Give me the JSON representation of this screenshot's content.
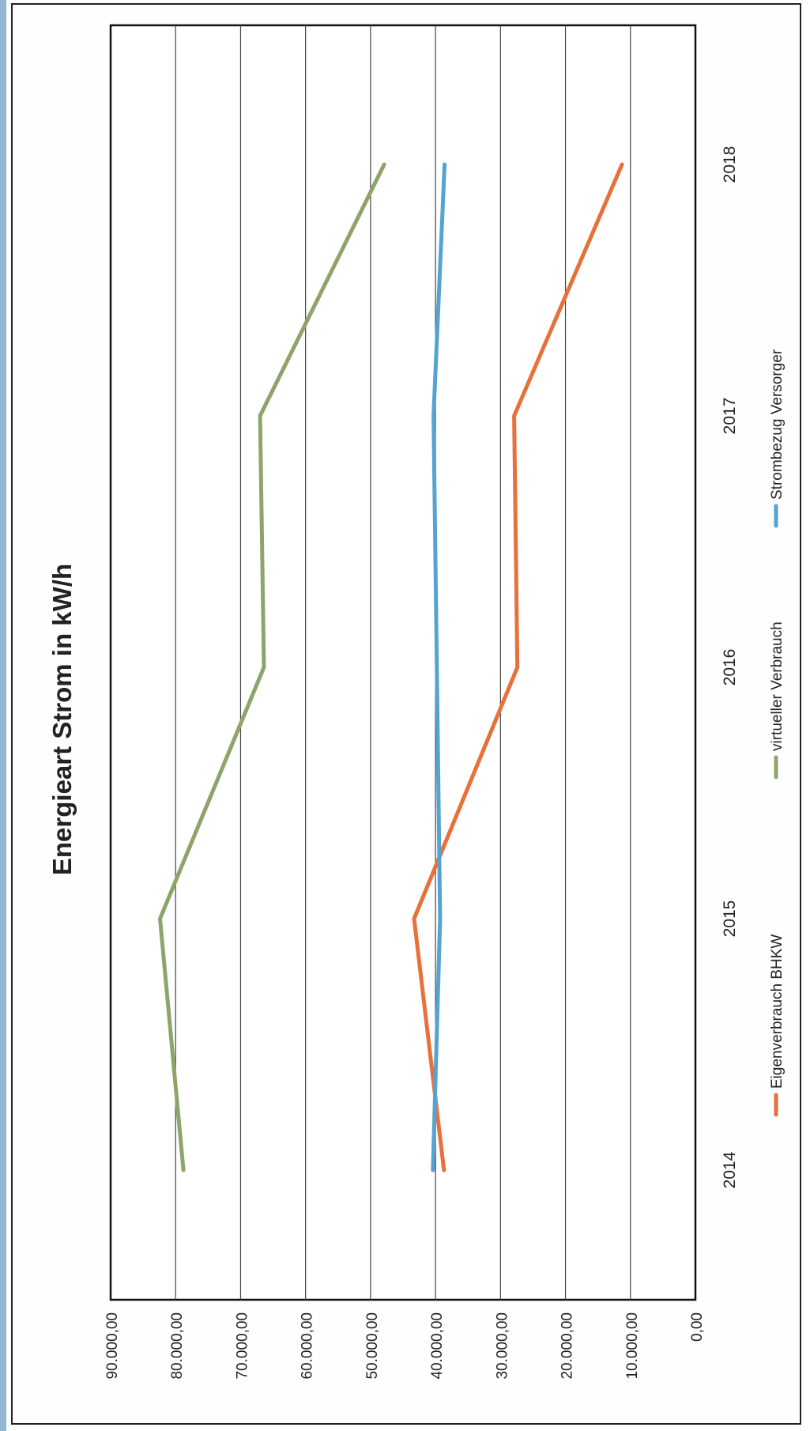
{
  "chart_data": {
    "type": "line",
    "title": "Energieart Strom in kW/h",
    "x": [
      "2014",
      "2015",
      "2016",
      "2017",
      "2018"
    ],
    "ylim": [
      0,
      90000
    ],
    "ytick_labels": [
      "0,00",
      "10.000,00",
      "20.000,00",
      "30.000,00",
      "40.000,00",
      "50.000,00",
      "60.000,00",
      "70.000,00",
      "80.000,00",
      "90.000,00"
    ],
    "grid": true,
    "legend_position": "bottom",
    "series": [
      {
        "name": "Eigenverbrauch BHKW",
        "color": "#e8703a",
        "values": [
          38700,
          43300,
          27400,
          27900,
          11300
        ]
      },
      {
        "name": "virtueller Verbrauch",
        "color": "#8ea46b",
        "values": [
          78800,
          82400,
          66400,
          67000,
          47900
        ]
      },
      {
        "name": "Strombezug Versorger",
        "color": "#56a3d2",
        "values": [
          40400,
          39300,
          39800,
          40300,
          38600
        ]
      }
    ]
  }
}
